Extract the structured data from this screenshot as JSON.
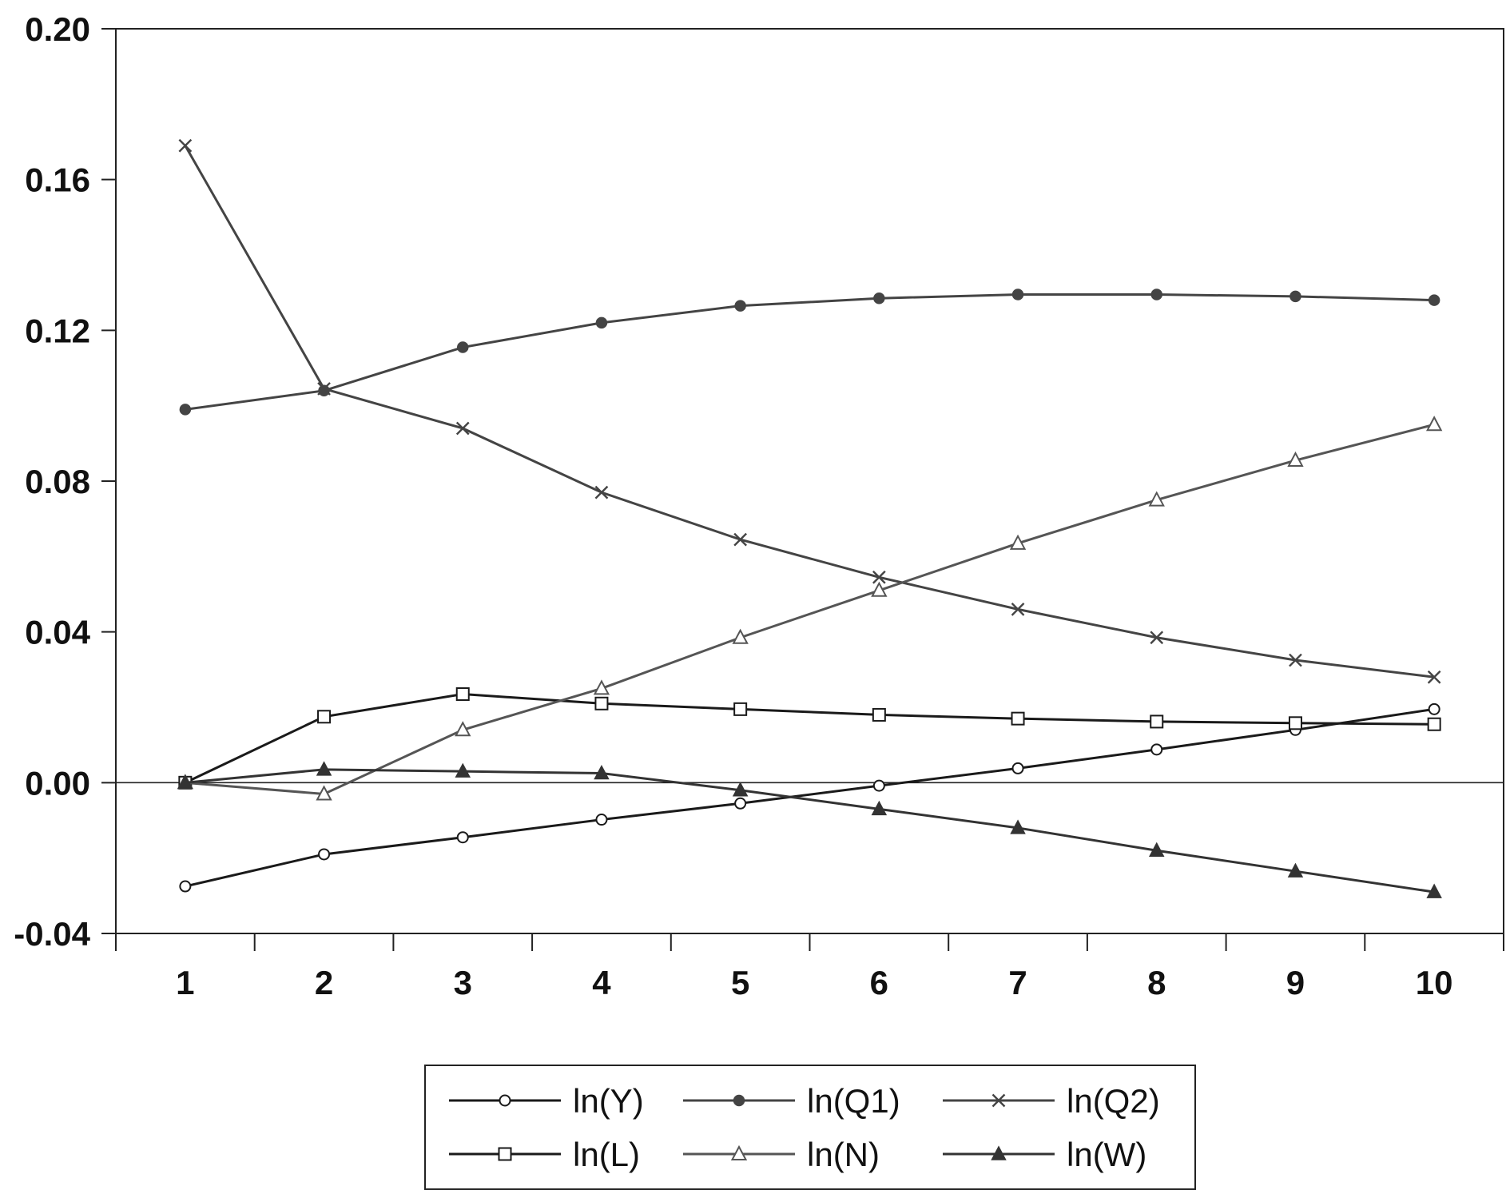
{
  "chart_data": {
    "type": "line",
    "title": "",
    "xlabel": "",
    "ylabel": "",
    "x": [
      1,
      2,
      3,
      4,
      5,
      6,
      7,
      8,
      9,
      10
    ],
    "x_tick_labels": [
      "1",
      "2",
      "3",
      "4",
      "5",
      "6",
      "7",
      "8",
      "9",
      "10"
    ],
    "ylim": [
      -0.04,
      0.2
    ],
    "y_tick_labels": [
      "0.20",
      "0.16",
      "0.12",
      "0.08",
      "0.04",
      "0.00",
      "-0.04"
    ],
    "y_ticks": [
      0.2,
      0.16,
      0.12,
      0.08,
      0.04,
      0.0,
      -0.04
    ],
    "zero_line": true,
    "grid": false,
    "legend_position": "bottom",
    "series": [
      {
        "name": "ln(Y)",
        "marker": "circle-open",
        "color": "#1a1a1a",
        "values": [
          -0.0275,
          -0.019,
          -0.0145,
          -0.0098,
          -0.0055,
          -0.0008,
          0.0038,
          0.0088,
          0.014,
          0.0195
        ]
      },
      {
        "name": "ln(Q1)",
        "marker": "circle-filled",
        "color": "#444444",
        "values": [
          0.099,
          0.104,
          0.1155,
          0.122,
          0.1265,
          0.1285,
          0.1295,
          0.1295,
          0.129,
          0.128
        ]
      },
      {
        "name": "ln(Q2)",
        "marker": "x",
        "color": "#444444",
        "values": [
          0.169,
          0.1045,
          0.094,
          0.077,
          0.0645,
          0.0545,
          0.046,
          0.0385,
          0.0325,
          0.028
        ]
      },
      {
        "name": "ln(L)",
        "marker": "square-open",
        "color": "#1a1a1a",
        "values": [
          0.0,
          0.0175,
          0.0235,
          0.021,
          0.0195,
          0.018,
          0.017,
          0.0162,
          0.0158,
          0.0155
        ]
      },
      {
        "name": "ln(N)",
        "marker": "triangle-open",
        "color": "#555555",
        "values": [
          0.0,
          -0.003,
          0.014,
          0.025,
          0.0385,
          0.051,
          0.0635,
          0.075,
          0.0855,
          0.095
        ]
      },
      {
        "name": "ln(W)",
        "marker": "triangle-filled",
        "color": "#333333",
        "values": [
          0.0,
          0.0035,
          0.003,
          0.0025,
          -0.002,
          -0.007,
          -0.012,
          -0.018,
          -0.0235,
          -0.029
        ]
      }
    ]
  }
}
